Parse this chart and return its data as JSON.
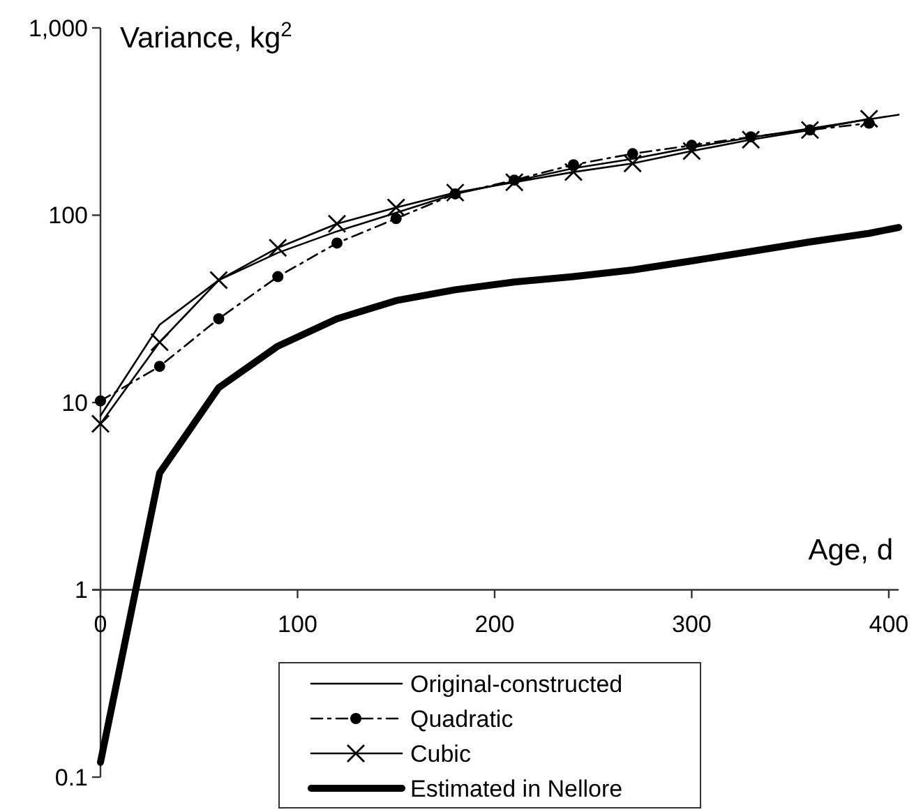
{
  "chart_data": {
    "type": "line",
    "xlabel": "Age, d",
    "ylabel": "Variance, kg$^{2}$",
    "log": "y",
    "xlim": [
      0,
      405
    ],
    "xticks": [
      0,
      100,
      200,
      300,
      400
    ],
    "ylim": [
      0.1,
      1000
    ],
    "yticks": [
      {
        "value": 0.1,
        "label": "0.1"
      },
      1,
      10,
      100,
      {
        "value": 1000,
        "label": "1,000"
      }
    ],
    "grid": false,
    "legend": "bottom",
    "x": [
      0,
      30,
      60,
      90,
      120,
      150,
      180,
      210,
      240,
      270,
      300,
      330,
      360,
      390,
      405
    ],
    "series": [
      {
        "name": "Original-constructed",
        "color": "#000000",
        "marker": "none",
        "line_style": "solid",
        "values": [
          8.5,
          26,
          45,
          63,
          82,
          103,
          130,
          152,
          178,
          200,
          230,
          260,
          290,
          325,
          344
        ]
      },
      {
        "name": "Quadratic",
        "color": "#000000",
        "marker": "circle",
        "line_style": "dashed",
        "x": [
          0,
          30,
          60,
          90,
          120,
          150,
          180,
          210,
          240,
          270,
          300,
          330,
          360,
          390
        ],
        "values": [
          10.2,
          15.6,
          28,
          47,
          71,
          96,
          130,
          154,
          186,
          213,
          236,
          262,
          285,
          310
        ]
      },
      {
        "name": "Cubic",
        "color": "#000000",
        "marker": "cross",
        "line_style": "solid",
        "x": [
          0,
          30,
          60,
          90,
          120,
          150,
          180,
          210,
          240,
          270,
          300,
          330,
          360,
          390
        ],
        "values": [
          7.7,
          21,
          45,
          67,
          90,
          110,
          132,
          150,
          170,
          189,
          220,
          253,
          285,
          327
        ]
      },
      {
        "name": "Estimated in Nellore",
        "color": "#000000",
        "marker": "none",
        "line_style": "solid",
        "values": [
          0.12,
          4.2,
          12,
          20,
          28,
          35,
          40,
          44,
          47,
          51,
          57,
          64,
          72,
          80,
          86
        ]
      }
    ]
  }
}
